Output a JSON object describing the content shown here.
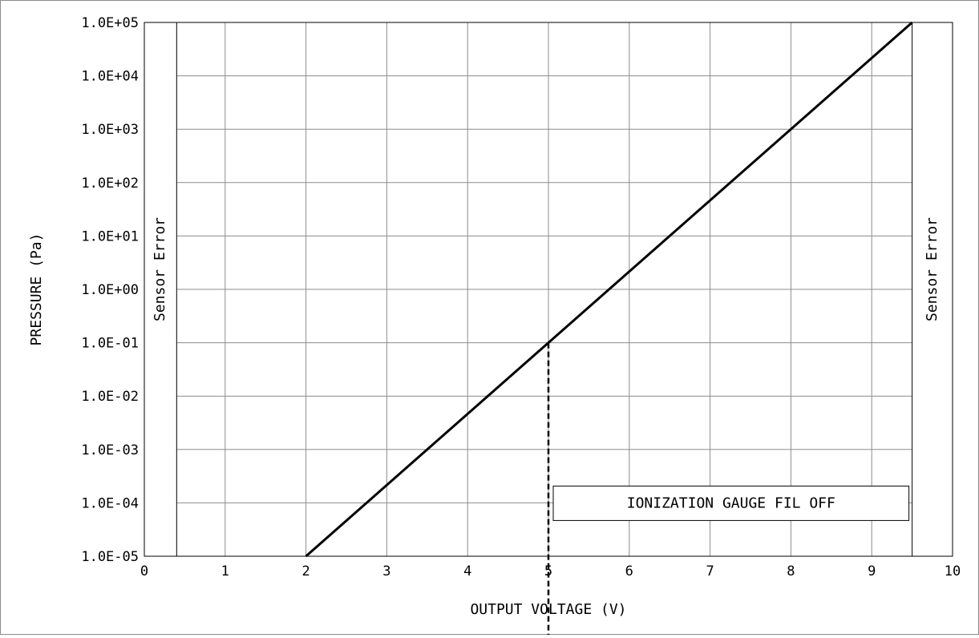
{
  "chart_data": {
    "type": "line",
    "title": "",
    "xlabel": "OUTPUT VOLTAGE (V)",
    "ylabel": "PRESSURE (Pa)",
    "xlim": [
      0,
      10
    ],
    "ylim": [
      1e-05,
      100000.0
    ],
    "y_scale": "log",
    "grid": true,
    "x_ticks": [
      "0",
      "1",
      "2",
      "3",
      "4",
      "5",
      "6",
      "7",
      "8",
      "9",
      "10"
    ],
    "y_ticks": [
      "1.0E-05",
      "1.0E-04",
      "1.0E-03",
      "1.0E-02",
      "1.0E-01",
      "1.0E+00",
      "1.0E+01",
      "1.0E+02",
      "1.0E+03",
      "1.0E+04",
      "1.0E+05"
    ],
    "series": [
      {
        "x": [
          2,
          9.5
        ],
        "y": [
          1e-05,
          100000.0
        ],
        "color": "#000000"
      }
    ],
    "error_regions": [
      {
        "label": "Sensor Error",
        "x_range": [
          0,
          0.4
        ]
      },
      {
        "label": "Sensor Error",
        "x_range": [
          9.5,
          10
        ]
      }
    ],
    "threshold": {
      "x": 5,
      "y_top": 0.1,
      "style": "dashed",
      "label": "IONIZATION GAUGE FIL OFF",
      "label_y": 0.0001
    }
  }
}
